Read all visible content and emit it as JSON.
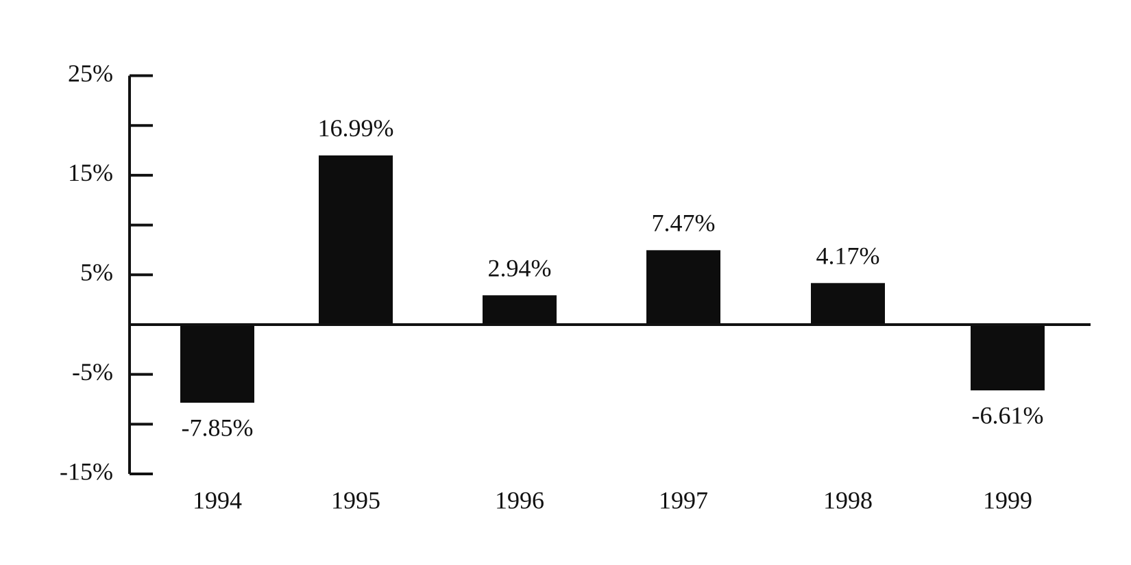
{
  "chart_data": {
    "type": "bar",
    "categories": [
      "1994",
      "1995",
      "1996",
      "1997",
      "1998",
      "1999"
    ],
    "values": [
      -7.85,
      16.99,
      2.94,
      7.47,
      4.17,
      -6.61
    ],
    "value_labels": [
      "-7.85%",
      "16.99%",
      "2.94%",
      "7.47%",
      "4.17%",
      "-6.61%"
    ],
    "color": "#0d0d0d",
    "ylim": [
      -15,
      25
    ],
    "yticks": [
      {
        "value": 25,
        "label": "25%"
      },
      {
        "value": 15,
        "label": "15%"
      },
      {
        "value": 5,
        "label": "5%"
      },
      {
        "value": -5,
        "label": "-5%"
      },
      {
        "value": -15,
        "label": "-15%"
      }
    ],
    "minor_yticks": [
      20,
      10,
      -10
    ],
    "grid": false
  }
}
